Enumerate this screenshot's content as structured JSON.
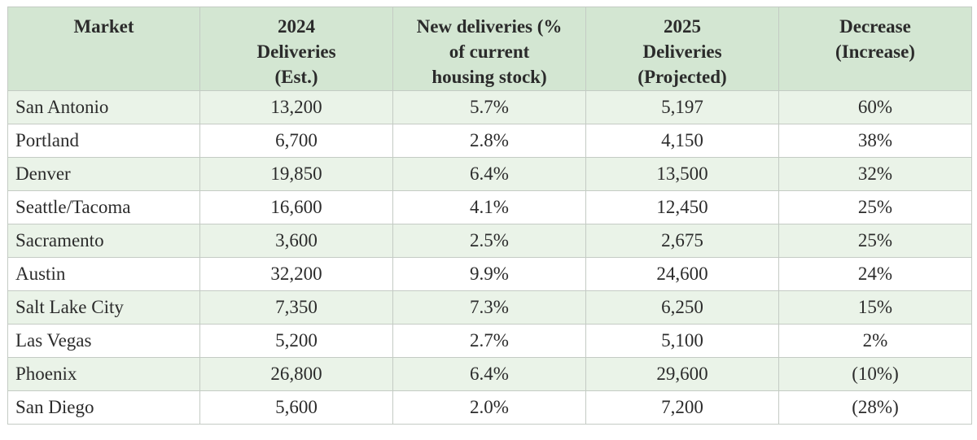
{
  "table": {
    "headers": [
      [
        "Market"
      ],
      [
        "2024",
        "Deliveries",
        "(Est.)"
      ],
      [
        "New deliveries (%",
        "of current",
        "housing stock)"
      ],
      [
        "2025",
        "Deliveries",
        "(Projected)"
      ],
      [
        "Decrease",
        "(Increase)"
      ]
    ],
    "rows": [
      [
        "San Antonio",
        "13,200",
        "5.7%",
        "5,197",
        "60%"
      ],
      [
        "Portland",
        "6,700",
        "2.8%",
        "4,150",
        "38%"
      ],
      [
        "Denver",
        "19,850",
        "6.4%",
        "13,500",
        "32%"
      ],
      [
        "Seattle/Tacoma",
        "16,600",
        "4.1%",
        "12,450",
        "25%"
      ],
      [
        "Sacramento",
        "3,600",
        "2.5%",
        "2,675",
        "25%"
      ],
      [
        "Austin",
        "32,200",
        "9.9%",
        "24,600",
        "24%"
      ],
      [
        "Salt Lake City",
        "7,350",
        "7.3%",
        "6,250",
        "15%"
      ],
      [
        "Las Vegas",
        "5,200",
        "2.7%",
        "5,100",
        "2%"
      ],
      [
        "Phoenix",
        "26,800",
        "6.4%",
        "29,600",
        "(10%)"
      ],
      [
        "San Diego",
        "5,600",
        "2.0%",
        "7,200",
        "(28%)"
      ]
    ]
  },
  "colors": {
    "header_bg": "#d3e6d2",
    "row_shade": "#eaf3e8",
    "border": "#c4cbc4",
    "text": "#2b2b2b"
  }
}
